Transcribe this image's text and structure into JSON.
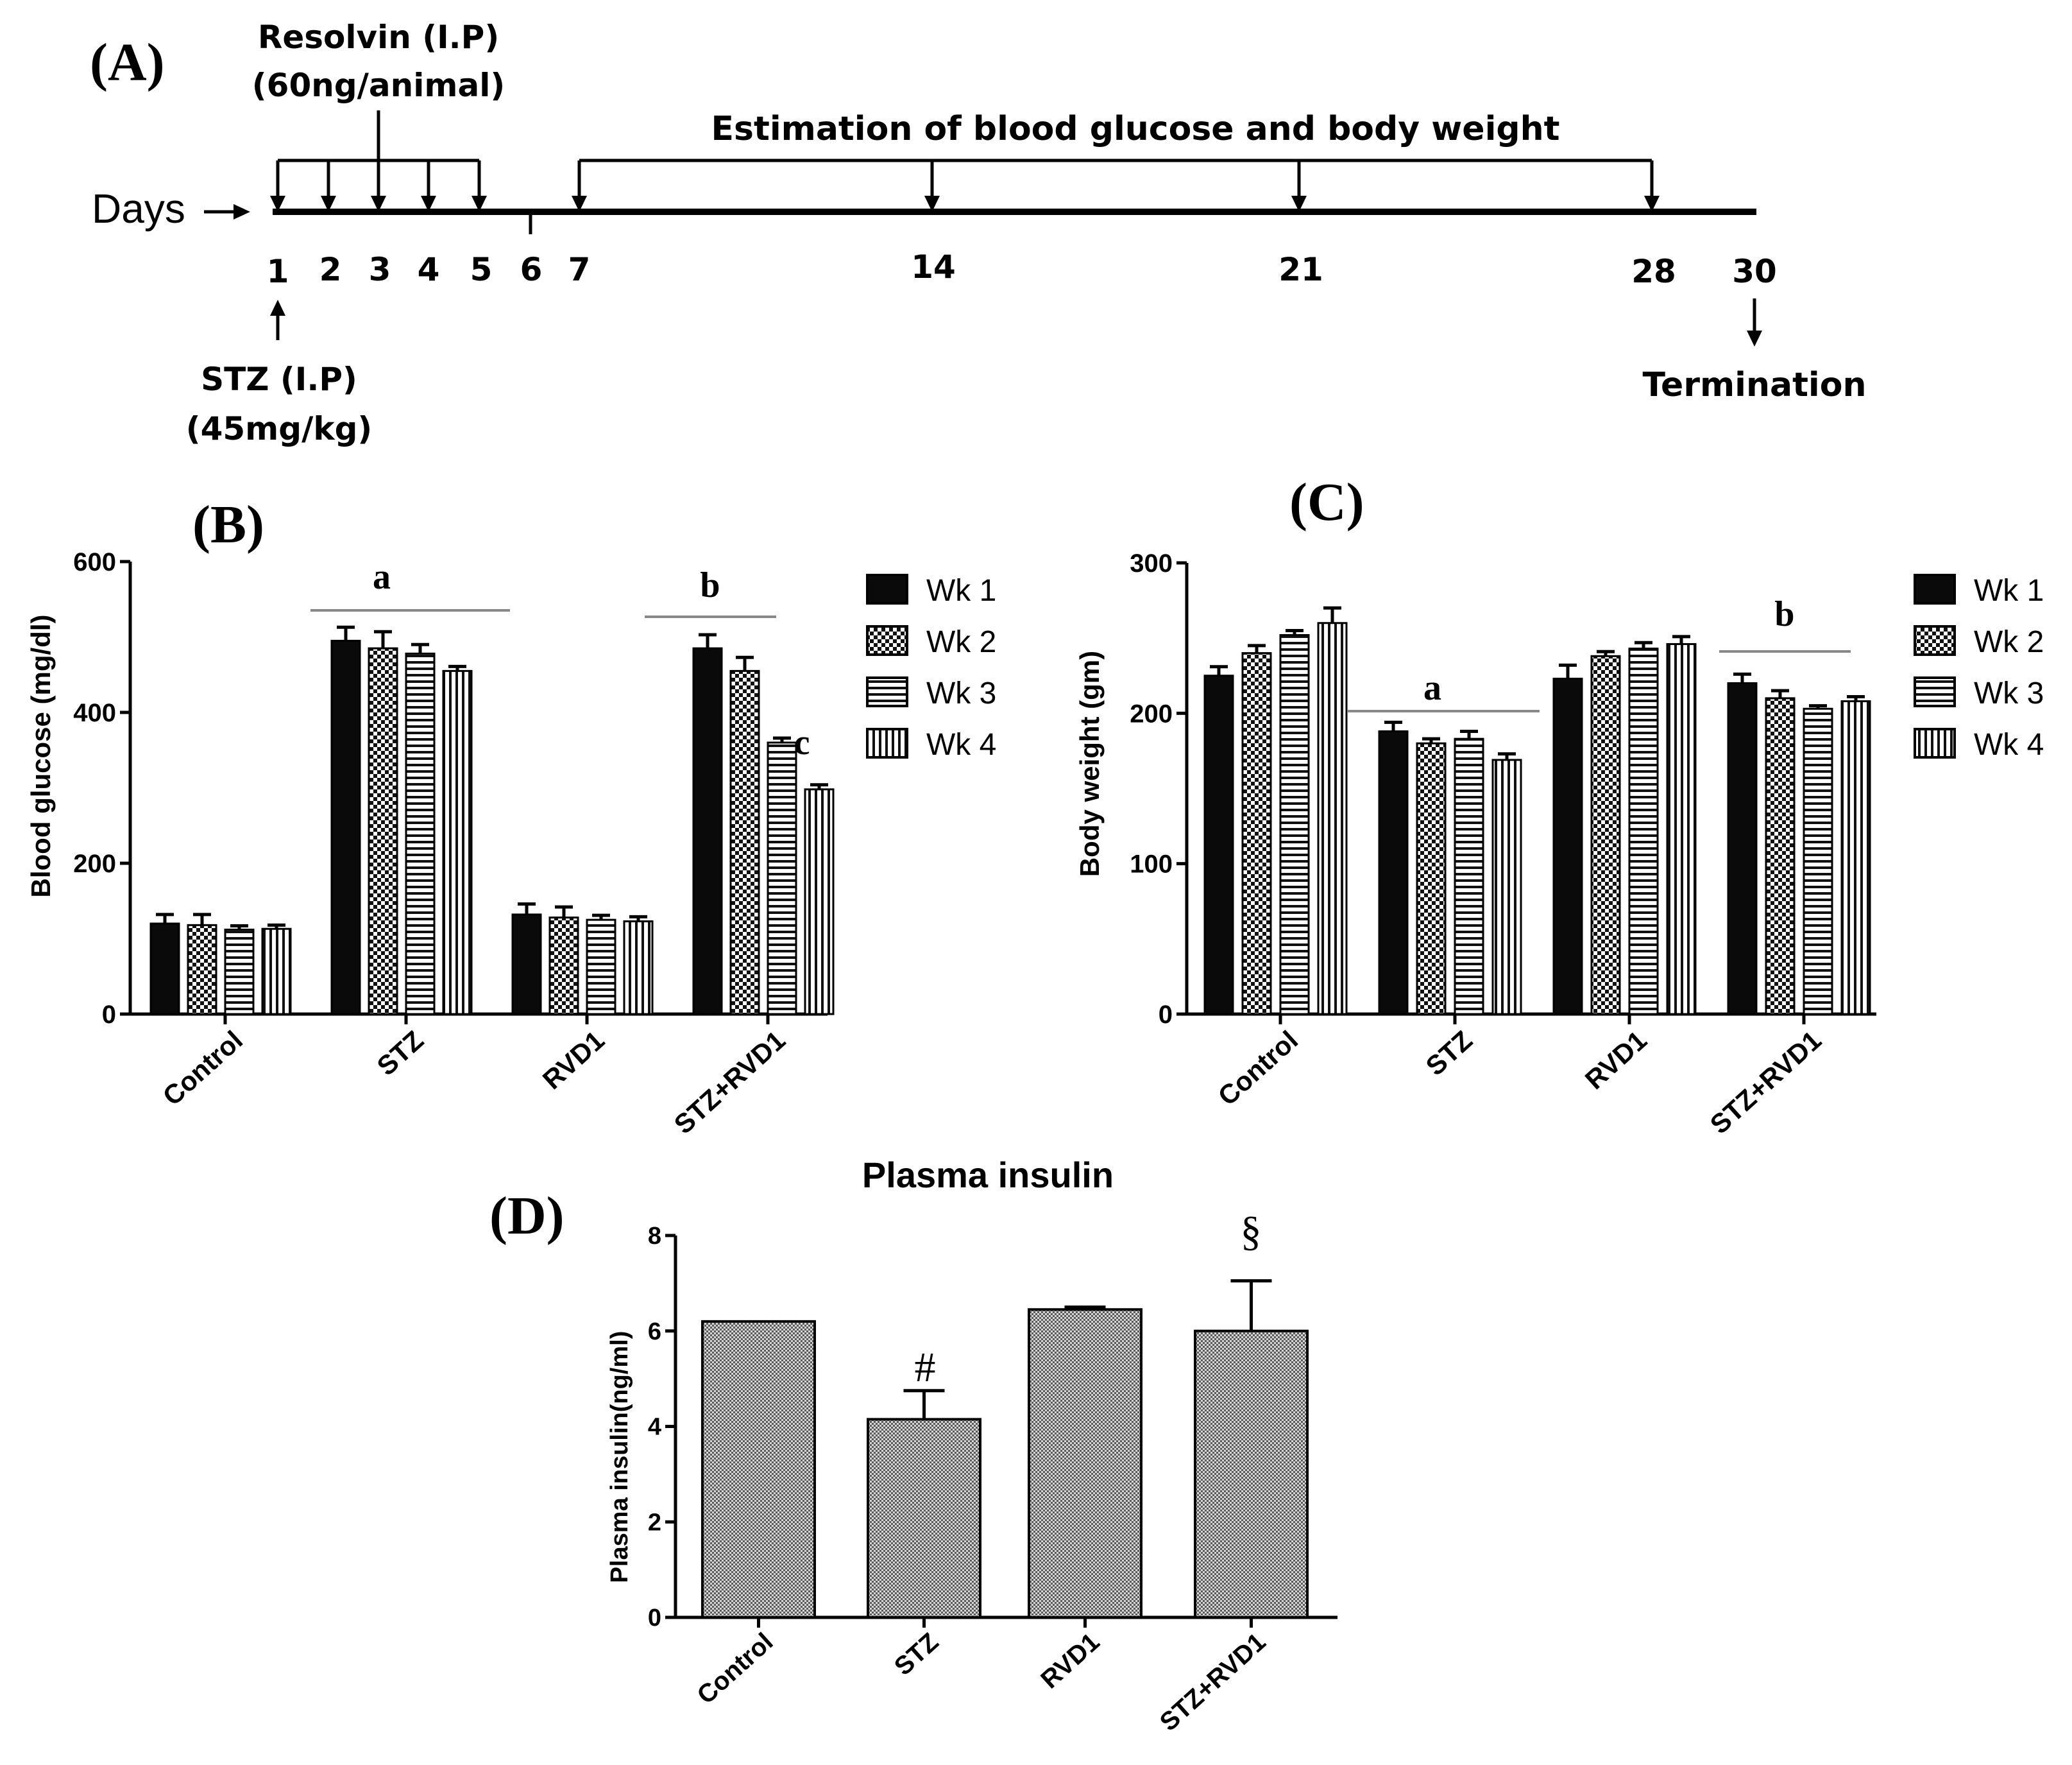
{
  "panel_labels": {
    "a": "(A)",
    "b": "(B)",
    "c": "(C)",
    "d": "(D)"
  },
  "timeline": {
    "days_label": "Days",
    "day_ticks": [
      "1",
      "2",
      "3",
      "4",
      "5",
      "6",
      "7",
      "14",
      "21",
      "28",
      "30"
    ],
    "resolvin_title": "Resolvin (I.P)",
    "resolvin_dose": "(60ng/animal)",
    "estimation_label": "Estimation of blood glucose and body weight",
    "stz_title": "STZ (I.P)",
    "stz_dose": "(45mg/kg)",
    "termination_label": "Termination"
  },
  "chart_data": [
    {
      "type": "bar",
      "panel": "B",
      "title": "",
      "ylabel": "Blood glucose (mg/dl)",
      "xlabel": "",
      "categories": [
        "Control",
        "STZ",
        "RVD1",
        "STZ+RVD1"
      ],
      "series": [
        {
          "name": "Wk 1",
          "pattern": "solid",
          "values": [
            120,
            495,
            132,
            485
          ],
          "errors": [
            12,
            18,
            14,
            18
          ]
        },
        {
          "name": "Wk 2",
          "pattern": "checker",
          "values": [
            118,
            485,
            128,
            455
          ],
          "errors": [
            14,
            22,
            14,
            18
          ]
        },
        {
          "name": "Wk 3",
          "pattern": "hstripe",
          "values": [
            112,
            478,
            125,
            360
          ],
          "errors": [
            5,
            12,
            6,
            6
          ]
        },
        {
          "name": "Wk 4",
          "pattern": "vstripe",
          "values": [
            113,
            455,
            123,
            298
          ],
          "errors": [
            5,
            6,
            6,
            6
          ]
        }
      ],
      "yticks": [
        "0",
        "200",
        "400",
        "600"
      ],
      "ylim": [
        0,
        600
      ],
      "annotations": [
        {
          "text": "a",
          "over": "STZ",
          "y": 530
        },
        {
          "text": "b",
          "over": "STZ+RVD1",
          "y": 518
        },
        {
          "text": "c",
          "over": "STZ+RVD1 Wk 4",
          "y": 350
        }
      ],
      "legend": "right"
    },
    {
      "type": "bar",
      "panel": "C",
      "title": "",
      "ylabel": "Body  weight (gm)",
      "xlabel": "",
      "categories": [
        "Control",
        "STZ",
        "RVD1",
        "STZ+RVD1"
      ],
      "series": [
        {
          "name": "Wk 1",
          "pattern": "solid",
          "values": [
            225,
            188,
            223,
            220
          ],
          "errors": [
            6,
            6,
            9,
            6
          ]
        },
        {
          "name": "Wk 2",
          "pattern": "checker",
          "values": [
            240,
            180,
            238,
            210
          ],
          "errors": [
            5,
            3,
            3,
            5
          ]
        },
        {
          "name": "Wk 3",
          "pattern": "hstripe",
          "values": [
            252,
            183,
            243,
            203
          ],
          "errors": [
            3,
            5,
            4,
            2
          ]
        },
        {
          "name": "Wk 4",
          "pattern": "vstripe",
          "values": [
            260,
            169,
            246,
            208
          ],
          "errors": [
            10,
            4,
            5,
            3
          ]
        }
      ],
      "yticks": [
        "0",
        "100",
        "200",
        "300"
      ],
      "ylim": [
        0,
        300
      ],
      "annotations": [
        {
          "text": "a",
          "over": "STZ",
          "y": 203
        },
        {
          "text": "b",
          "over": "STZ+RVD1",
          "y": 240
        }
      ],
      "legend": "right"
    },
    {
      "type": "bar",
      "panel": "D",
      "title": "Plasma insulin",
      "ylabel": "Plasma insulin(ng/ml)",
      "xlabel": "",
      "categories": [
        "Control",
        "STZ",
        "RVD1",
        "STZ+RVD1"
      ],
      "values": [
        6.2,
        4.15,
        6.45,
        6.0
      ],
      "errors": [
        0.0,
        0.6,
        0.05,
        1.05
      ],
      "yticks": [
        "0",
        "2",
        "4",
        "6",
        "8"
      ],
      "ylim": [
        0,
        8
      ],
      "annotations": [
        {
          "text": "#",
          "over": "STZ"
        },
        {
          "text": "§",
          "over": "STZ+RVD1"
        }
      ]
    }
  ]
}
